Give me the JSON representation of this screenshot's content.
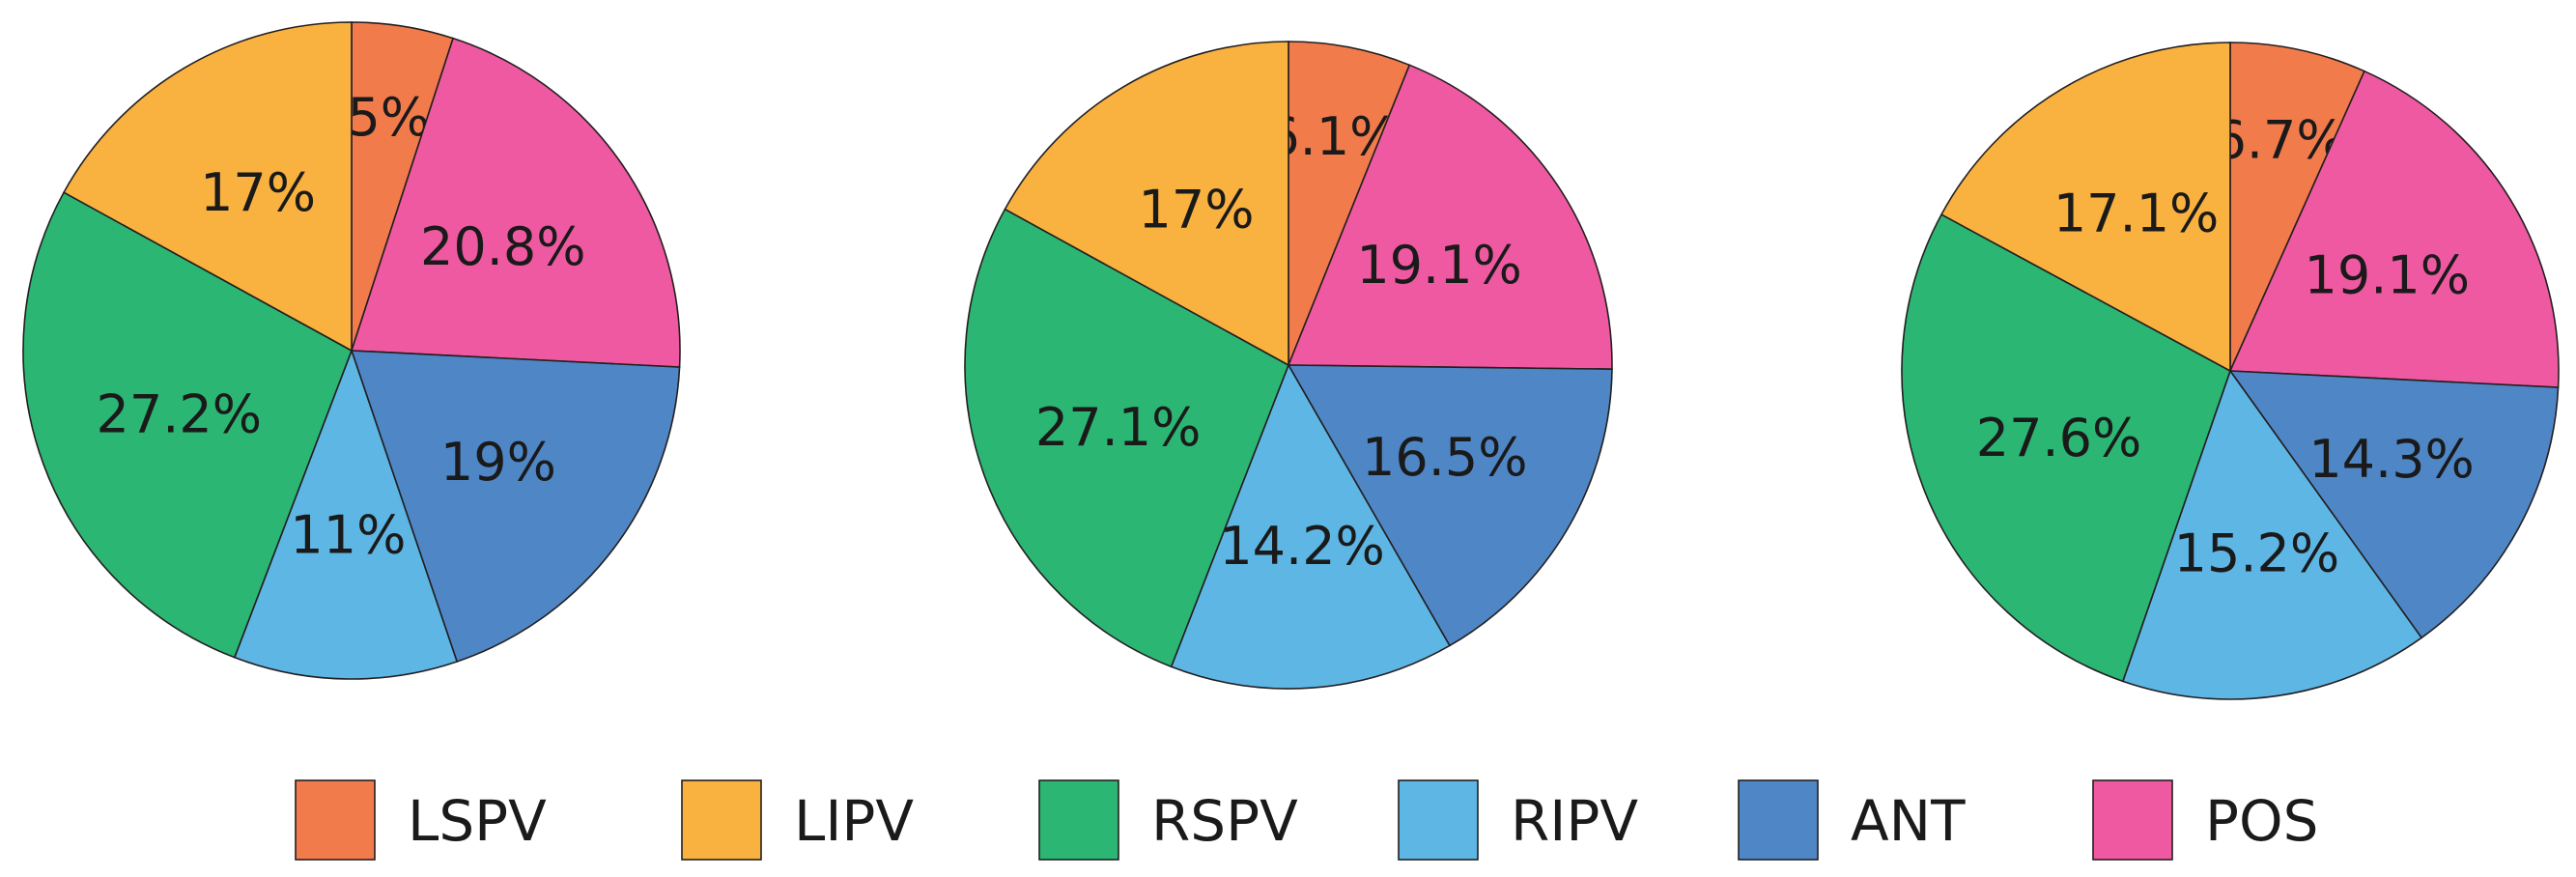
{
  "chart_data": [
    {
      "type": "pie",
      "categories": [
        "LSPV",
        "POS",
        "ANT",
        "RIPV",
        "RSPV",
        "LIPV"
      ],
      "values": [
        5,
        20.8,
        19,
        11,
        27.2,
        17
      ],
      "labels": [
        "5%",
        "20.8%",
        "19%",
        "11%",
        "27.2%",
        "17%"
      ]
    },
    {
      "type": "pie",
      "categories": [
        "LSPV",
        "POS",
        "ANT",
        "RIPV",
        "RSPV",
        "LIPV"
      ],
      "values": [
        6.1,
        19.1,
        16.5,
        14.2,
        27.1,
        17
      ],
      "labels": [
        "6.1%",
        "19.1%",
        "16.5%",
        "14.2%",
        "27.1%",
        "17%"
      ]
    },
    {
      "type": "pie",
      "categories": [
        "LSPV",
        "POS",
        "ANT",
        "RIPV",
        "RSPV",
        "LIPV"
      ],
      "values": [
        6.7,
        19.1,
        14.3,
        15.2,
        27.6,
        17.1
      ],
      "labels": [
        "6.7%",
        "19.1%",
        "14.3%",
        "15.2%",
        "27.6%",
        "17.1%"
      ]
    }
  ],
  "legend": {
    "placement": "bottom",
    "items": [
      {
        "label": "LSPV",
        "color": "#f27b4c"
      },
      {
        "label": "LIPV",
        "color": "#f9b13f"
      },
      {
        "label": "RSPV",
        "color": "#2bb673"
      },
      {
        "label": "RIPV",
        "color": "#5eb6e4"
      },
      {
        "label": "ANT",
        "color": "#4f86c6"
      },
      {
        "label": "POS",
        "color": "#ef59a1"
      }
    ]
  },
  "colors": {
    "LSPV": "#f27b4c",
    "LIPV": "#f9b13f",
    "RSPV": "#2bb673",
    "RIPV": "#5eb6e4",
    "ANT": "#4f86c6",
    "POS": "#ef59a1"
  }
}
